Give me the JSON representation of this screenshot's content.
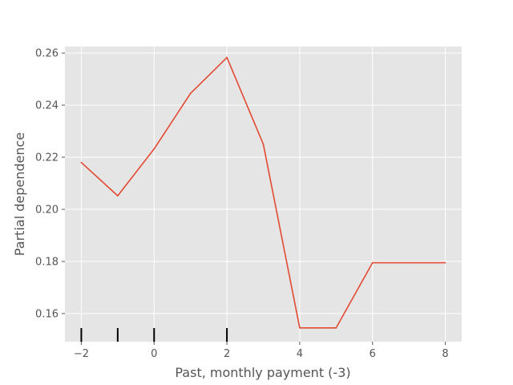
{
  "chart_data": {
    "type": "line",
    "title": "",
    "xlabel": "Past, monthly payment (-3)",
    "ylabel": "Partial dependence",
    "xlim": [
      -2.45,
      8.45
    ],
    "ylim": [
      0.1492,
      0.2625
    ],
    "x_ticks": [
      -2,
      0,
      2,
      4,
      6,
      8
    ],
    "x_tick_labels": [
      "−2",
      "0",
      "2",
      "4",
      "6",
      "8"
    ],
    "y_ticks": [
      0.16,
      0.18,
      0.2,
      0.22,
      0.24,
      0.26
    ],
    "y_tick_labels": [
      "0.16",
      "0.18",
      "0.20",
      "0.22",
      "0.24",
      "0.26"
    ],
    "grid": true,
    "background_color": "#e5e5e5",
    "grid_color": "#ffffff",
    "series": [
      {
        "color": "#e24a33",
        "x": [
          -2,
          -1,
          0,
          1,
          2,
          3,
          4,
          5,
          6,
          7,
          8
        ],
        "y": [
          0.218,
          0.2052,
          0.2232,
          0.2445,
          0.2583,
          0.225,
          0.1545,
          0.1545,
          0.1795,
          0.1795,
          0.1795
        ]
      }
    ],
    "rug_marks": [
      -2,
      -1,
      0,
      2
    ],
    "rug_color": "#000000"
  }
}
